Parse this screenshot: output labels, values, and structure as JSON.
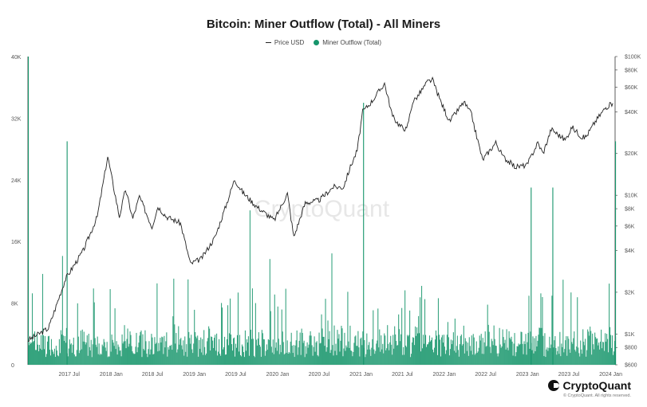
{
  "chart_data": {
    "type": "bar",
    "title": "Bitcoin: Miner Outflow (Total) - All Miners",
    "legend": [
      "Price USD",
      "Miner Outflow (Total)"
    ],
    "legend_position": "top-center",
    "watermark": "CryptoQuant",
    "brand": "CryptoQuant",
    "copyright": "© CryptoQuant. All rights reserved.",
    "x_tick_labels": [
      "2017 Jul",
      "2018 Jan",
      "2018 Jul",
      "2019 Jan",
      "2019 Jul",
      "2020 Jan",
      "2020 Jul",
      "2021 Jan",
      "2021 Jul",
      "2022 Jan",
      "2022 Jul",
      "2023 Jan",
      "2023 Jul",
      "2024 Jan"
    ],
    "left_axis": {
      "label": "",
      "ticks": [
        "0",
        "8K",
        "16K",
        "24K",
        "32K",
        "40K"
      ],
      "ylim": [
        0,
        40000
      ]
    },
    "right_axis": {
      "label": "",
      "scale": "log",
      "ticks": [
        "$600",
        "$800",
        "$1K",
        "$2K",
        "$4K",
        "$6K",
        "$8K",
        "$10K",
        "$20K",
        "$40K",
        "$60K",
        "$80K",
        "$100K"
      ],
      "ylim": [
        600,
        100000
      ]
    },
    "series": [
      {
        "name": "Price USD",
        "type": "line",
        "color": "#222222",
        "x": [
          "2017-01-01",
          "2017-04-01",
          "2017-06-15",
          "2017-09-01",
          "2017-11-01",
          "2017-12-17",
          "2018-02-06",
          "2018-03-05",
          "2018-04-06",
          "2018-05-05",
          "2018-06-29",
          "2018-07-25",
          "2018-09-01",
          "2018-11-01",
          "2018-12-15",
          "2019-02-01",
          "2019-04-02",
          "2019-05-15",
          "2019-06-26",
          "2019-08-01",
          "2019-10-01",
          "2019-12-17",
          "2020-02-13",
          "2020-03-12",
          "2020-05-01",
          "2020-07-01",
          "2020-09-01",
          "2020-10-15",
          "2020-11-15",
          "2020-12-15",
          "2021-01-08",
          "2021-02-15",
          "2021-04-14",
          "2021-05-19",
          "2021-06-22",
          "2021-07-20",
          "2021-08-15",
          "2021-09-07",
          "2021-10-20",
          "2021-11-10",
          "2021-12-15",
          "2022-01-24",
          "2022-03-28",
          "2022-05-01",
          "2022-05-15",
          "2022-06-18",
          "2022-08-15",
          "2022-09-15",
          "2022-11-09",
          "2022-12-30",
          "2023-02-15",
          "2023-03-10",
          "2023-04-15",
          "2023-06-15",
          "2023-07-15",
          "2023-08-30",
          "2023-09-15",
          "2023-10-25",
          "2023-12-10",
          "2024-01-10"
        ],
        "values": [
          900,
          1100,
          2500,
          4000,
          7000,
          19000,
          7000,
          11000,
          6800,
          9800,
          5900,
          8300,
          7000,
          6300,
          3200,
          3500,
          5000,
          8000,
          13000,
          10500,
          8300,
          6600,
          10300,
          5000,
          8800,
          9200,
          11500,
          11400,
          16000,
          21000,
          40000,
          47000,
          64000,
          37000,
          31500,
          29800,
          47000,
          52000,
          66000,
          68000,
          48000,
          34000,
          47000,
          38000,
          30000,
          18000,
          24000,
          19000,
          16000,
          16500,
          24000,
          20000,
          30000,
          25000,
          31000,
          26000,
          26500,
          34000,
          43000,
          46000
        ]
      },
      {
        "name": "Miner Outflow (Total)",
        "type": "bar",
        "color": "#16956b",
        "x_range": [
          "2017-01-01",
          "2024-01-20"
        ],
        "typical_daily_range": [
          1000,
          5500
        ],
        "notable_spikes": [
          {
            "x": "2017-01-01",
            "value": 40000
          },
          {
            "x": "2017-06-20",
            "value": 29000
          },
          {
            "x": "2021-01-10",
            "value": 34000
          },
          {
            "x": "2023-01-15",
            "value": 23000
          },
          {
            "x": "2023-04-20",
            "value": 23000
          },
          {
            "x": "2024-01-20",
            "value": 29000
          }
        ]
      }
    ]
  }
}
